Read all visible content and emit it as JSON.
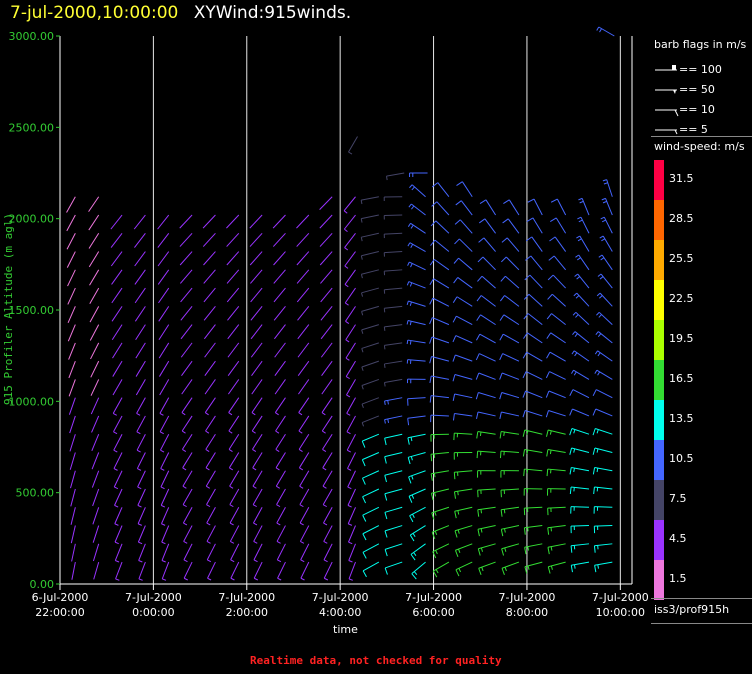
{
  "header": {
    "timestamp": "7-jul-2000,10:00:00",
    "product": "XYWind:915winds."
  },
  "footer": {
    "note": "Realtime data, not checked for quality"
  },
  "station": "iss3/prof915h",
  "legend": {
    "barb_title": "barb flags in m/s",
    "barbs": [
      {
        "label": "== 100",
        "kind": "flag"
      },
      {
        "label": "== 50",
        "kind": "pennant"
      },
      {
        "label": "== 10",
        "kind": "full"
      },
      {
        "label": "== 5",
        "kind": "half"
      }
    ],
    "speed_title": "wind-speed: m/s",
    "speed_bins": [
      {
        "label": "31.5",
        "color": "#ff0044"
      },
      {
        "label": "28.5",
        "color": "#ff6600"
      },
      {
        "label": "25.5",
        "color": "#ffaa00"
      },
      {
        "label": "22.5",
        "color": "#ffff00"
      },
      {
        "label": "19.5",
        "color": "#aaff00"
      },
      {
        "label": "16.5",
        "color": "#33dd33"
      },
      {
        "label": "13.5",
        "color": "#00ffee"
      },
      {
        "label": "10.5",
        "color": "#4466ff"
      },
      {
        "label": "7.5",
        "color": "#444466"
      },
      {
        "label": "4.5",
        "color": "#9933ff"
      },
      {
        "label": "1.5",
        "color": "#ee77dd"
      }
    ]
  },
  "chart_data": {
    "type": "scatter",
    "title": "7-jul-2000,10:00:00  XYWind:915winds.",
    "xlabel": "time",
    "ylabel": "915 Profiler Altitude (m agl)",
    "ylim": [
      0,
      3000
    ],
    "yticks": [
      "0.00",
      "500.00",
      "1000.00",
      "1500.00",
      "2000.00",
      "2500.00",
      "3000.00"
    ],
    "xticks": [
      {
        "line1": "6-Jul-2000",
        "line2": "22:00:00",
        "hours": 0
      },
      {
        "line1": "7-Jul-2000",
        "line2": "0:00:00",
        "hours": 2
      },
      {
        "line1": "7-Jul-2000",
        "line2": "2:00:00",
        "hours": 4
      },
      {
        "line1": "7-Jul-2000",
        "line2": "4:00:00",
        "hours": 6
      },
      {
        "line1": "7-Jul-2000",
        "line2": "6:00:00",
        "hours": 8
      },
      {
        "line1": "7-Jul-2000",
        "line2": "8:00:00",
        "hours": 10
      },
      {
        "line1": "7-Jul-2000",
        "line2": "10:00:00",
        "hours": 12
      }
    ],
    "xlim_hours": [
      0,
      12.25
    ],
    "grid": "vertical lines at tick times",
    "encoding": "wind barbs colored by wind speed",
    "profiles": [
      {
        "time": "6-Jul-2000 22:30",
        "top": 2200,
        "dir": 200,
        "speed": 4
      },
      {
        "time": "6-Jul-2000 23:00",
        "top": 2150,
        "dir": 205,
        "speed": 4
      },
      {
        "time": "6-Jul-2000 23:30",
        "top": 2100,
        "dir": 210,
        "speed": 5
      },
      {
        "time": "7-Jul-2000 00:00",
        "top": 2050,
        "dir": 210,
        "speed": 5
      },
      {
        "time": "7-Jul-2000 00:30",
        "top": 2050,
        "dir": 210,
        "speed": 5
      },
      {
        "time": "7-Jul-2000 01:00",
        "top": 2050,
        "dir": 215,
        "speed": 5
      },
      {
        "time": "7-Jul-2000 01:30",
        "top": 2050,
        "dir": 215,
        "speed": 5
      },
      {
        "time": "7-Jul-2000 02:00",
        "top": 2050,
        "dir": 215,
        "speed": 5
      },
      {
        "time": "7-Jul-2000 02:30",
        "top": 2050,
        "dir": 215,
        "speed": 5
      },
      {
        "time": "7-Jul-2000 03:00",
        "top": 2100,
        "dir": 215,
        "speed": 5
      },
      {
        "time": "7-Jul-2000 03:30",
        "top": 2100,
        "dir": 215,
        "speed": 5
      },
      {
        "time": "7-Jul-2000 04:00",
        "top": 2200,
        "dir": 215,
        "speed": 5
      },
      {
        "time": "7-Jul-2000 04:30",
        "top": 2450,
        "dir": 210,
        "speed": 6
      },
      {
        "time": "7-Jul-2000 05:00",
        "top": 2200,
        "dir": 250,
        "speed": 7
      },
      {
        "time": "7-Jul-2000 05:30",
        "top": 2250,
        "dir": 260,
        "speed": 8
      },
      {
        "time": "7-Jul-2000 06:00",
        "top": 2250,
        "dir": 270,
        "speed": 9
      },
      {
        "time": "7-Jul-2000 06:30",
        "top": 2150,
        "dir": 280,
        "speed": 10
      },
      {
        "time": "7-Jul-2000 07:00",
        "top": 2150,
        "dir": 285,
        "speed": 10
      },
      {
        "time": "7-Jul-2000 07:30",
        "top": 2100,
        "dir": 290,
        "speed": 10
      },
      {
        "time": "7-Jul-2000 08:00",
        "top": 2100,
        "dir": 290,
        "speed": 10
      },
      {
        "time": "7-Jul-2000 08:30",
        "top": 2100,
        "dir": 295,
        "speed": 10
      },
      {
        "time": "7-Jul-2000 09:00",
        "top": 2100,
        "dir": 295,
        "speed": 10
      },
      {
        "time": "7-Jul-2000 09:30",
        "top": 2100,
        "dir": 300,
        "speed": 9
      },
      {
        "time": "7-Jul-2000 10:00",
        "top": 3000,
        "dir": 300,
        "speed": 9
      }
    ]
  }
}
